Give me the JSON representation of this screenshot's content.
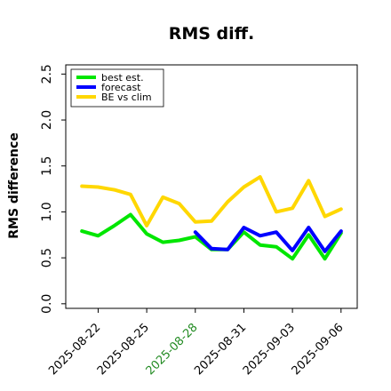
{
  "chart_data": {
    "type": "line",
    "title": "RMS diff.",
    "xlabel": "",
    "ylabel": "RMS difference",
    "ylim": [
      -0.05,
      2.6
    ],
    "yticks": [
      "0.0",
      "0.5",
      "1.0",
      "1.5",
      "2.0",
      "2.5"
    ],
    "xlim": [
      "2025-08-20",
      "2025-09-07"
    ],
    "xticks": [
      {
        "label": "2025-08-22",
        "highlight": false
      },
      {
        "label": "2025-08-25",
        "highlight": false
      },
      {
        "label": "2025-08-28",
        "highlight": true
      },
      {
        "label": "2025-08-31",
        "highlight": false
      },
      {
        "label": "2025-09-03",
        "highlight": false
      },
      {
        "label": "2025-09-06",
        "highlight": false
      }
    ],
    "highlight_color": "#228b22",
    "grid": false,
    "legend_position": "top-left",
    "series": [
      {
        "name": "best est.",
        "color": "#00e600",
        "x": [
          "2025-08-21",
          "2025-08-22",
          "2025-08-23",
          "2025-08-24",
          "2025-08-25",
          "2025-08-26",
          "2025-08-27",
          "2025-08-28",
          "2025-08-29",
          "2025-08-30",
          "2025-08-31",
          "2025-09-01",
          "2025-09-02",
          "2025-09-03",
          "2025-09-04",
          "2025-09-05",
          "2025-09-06"
        ],
        "values": [
          0.79,
          0.74,
          0.85,
          0.97,
          0.76,
          0.67,
          0.69,
          0.73,
          0.59,
          0.59,
          0.78,
          0.64,
          0.62,
          0.49,
          0.75,
          0.49,
          0.77
        ]
      },
      {
        "name": "forecast",
        "color": "#0000ff",
        "x": [
          "2025-08-28",
          "2025-08-29",
          "2025-08-30",
          "2025-08-31",
          "2025-09-01",
          "2025-09-02",
          "2025-09-03",
          "2025-09-04",
          "2025-09-05",
          "2025-09-06"
        ],
        "values": [
          0.78,
          0.6,
          0.59,
          0.83,
          0.74,
          0.78,
          0.58,
          0.83,
          0.57,
          0.79
        ]
      },
      {
        "name": "BE vs clim",
        "color": "#ffd700",
        "x": [
          "2025-08-21",
          "2025-08-22",
          "2025-08-23",
          "2025-08-24",
          "2025-08-25",
          "2025-08-26",
          "2025-08-27",
          "2025-08-28",
          "2025-08-29",
          "2025-08-30",
          "2025-08-31",
          "2025-09-01",
          "2025-09-02",
          "2025-09-03",
          "2025-09-04",
          "2025-09-05",
          "2025-09-06"
        ],
        "values": [
          1.28,
          1.27,
          1.24,
          1.19,
          0.85,
          1.16,
          1.09,
          0.89,
          0.9,
          1.11,
          1.27,
          1.38,
          1.0,
          1.04,
          1.34,
          0.95,
          1.03
        ]
      }
    ]
  }
}
